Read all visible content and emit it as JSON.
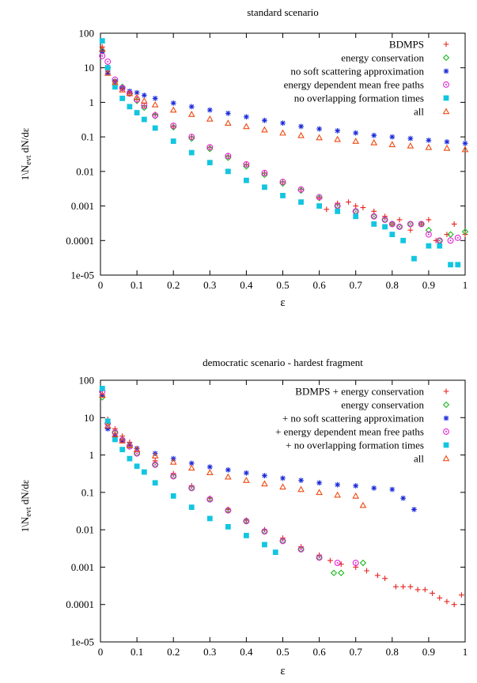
{
  "chart_data": [
    {
      "type": "scatter",
      "title": "standard scenario",
      "xlabel": "ε",
      "ylabel": "1\\N",
      "ylabel_sub": "evt",
      "ylabel_tail": " dN/dε",
      "xlim": [
        0,
        1
      ],
      "ylim": [
        1e-05,
        100
      ],
      "yscale": "log",
      "grid": false,
      "legend": "top-right",
      "xticks": [
        "0",
        "0.1",
        "0.2",
        "0.3",
        "0.4",
        "0.5",
        "0.6",
        "0.7",
        "0.8",
        "0.9",
        "1"
      ],
      "yticks": [
        "1e-05",
        "0.0001",
        "0.001",
        "0.01",
        "0.1",
        "1",
        "10",
        "100"
      ],
      "series": [
        {
          "name": "BDMPS",
          "color": "#e8231e",
          "marker": "plus",
          "x": [
            0.005,
            0.02,
            0.04,
            0.06,
            0.08,
            0.1,
            0.12,
            0.15,
            0.2,
            0.25,
            0.3,
            0.35,
            0.4,
            0.45,
            0.5,
            0.55,
            0.6,
            0.62,
            0.65,
            0.68,
            0.7,
            0.72,
            0.75,
            0.78,
            0.8,
            0.82,
            0.85,
            0.88,
            0.9,
            0.92,
            0.95,
            0.97,
            1.0
          ],
          "y": [
            40,
            8,
            4,
            2.5,
            1.8,
            1.2,
            0.8,
            0.45,
            0.2,
            0.1,
            0.05,
            0.028,
            0.016,
            0.009,
            0.005,
            0.003,
            0.0017,
            0.0008,
            0.0012,
            0.0013,
            0.001,
            0.0009,
            0.0007,
            0.0005,
            0.0003,
            0.0004,
            0.0002,
            0.0003,
            0.0004,
            0.0001,
            0.00015,
            0.0003,
            0.00015
          ]
        },
        {
          "name": "energy conservation",
          "color": "#19b91c",
          "marker": "diamond",
          "x": [
            0.005,
            0.02,
            0.04,
            0.06,
            0.08,
            0.1,
            0.12,
            0.15,
            0.2,
            0.25,
            0.3,
            0.35,
            0.4,
            0.45,
            0.5,
            0.55,
            0.6,
            0.65,
            0.7,
            0.75,
            0.78,
            0.8,
            0.82,
            0.85,
            0.88,
            0.9,
            0.93,
            0.96,
            1.0
          ],
          "y": [
            30,
            10,
            4,
            2.8,
            1.8,
            1.1,
            0.7,
            0.4,
            0.19,
            0.09,
            0.045,
            0.025,
            0.014,
            0.008,
            0.0045,
            0.0028,
            0.0017,
            0.001,
            0.0007,
            0.0005,
            0.0004,
            0.0003,
            0.00025,
            0.0003,
            0.0003,
            0.0002,
            0.0001,
            0.00015,
            0.00018
          ]
        },
        {
          "name": "no soft scattering approximation",
          "color": "#1b2bd9",
          "marker": "star",
          "x": [
            0.005,
            0.02,
            0.04,
            0.06,
            0.08,
            0.1,
            0.12,
            0.15,
            0.2,
            0.25,
            0.3,
            0.35,
            0.4,
            0.45,
            0.5,
            0.55,
            0.6,
            0.65,
            0.7,
            0.75,
            0.8,
            0.85,
            0.9,
            0.95,
            1.0
          ],
          "y": [
            30,
            7,
            4,
            2.6,
            2.1,
            1.9,
            1.6,
            1.3,
            0.95,
            0.75,
            0.6,
            0.48,
            0.38,
            0.3,
            0.25,
            0.2,
            0.17,
            0.15,
            0.13,
            0.11,
            0.1,
            0.09,
            0.08,
            0.072,
            0.065
          ]
        },
        {
          "name": "energy dependent mean free paths",
          "color": "#e323d6",
          "marker": "circle",
          "x": [
            0.005,
            0.02,
            0.04,
            0.06,
            0.08,
            0.1,
            0.12,
            0.15,
            0.2,
            0.25,
            0.3,
            0.35,
            0.4,
            0.45,
            0.5,
            0.55,
            0.6,
            0.65,
            0.7,
            0.75,
            0.78,
            0.8,
            0.82,
            0.85,
            0.88,
            0.9,
            0.93,
            0.96,
            0.98
          ],
          "y": [
            22,
            15,
            4.5,
            2.6,
            1.8,
            1.2,
            0.8,
            0.42,
            0.21,
            0.1,
            0.05,
            0.028,
            0.016,
            0.009,
            0.005,
            0.003,
            0.0018,
            0.001,
            0.0007,
            0.0005,
            0.0004,
            0.0003,
            0.00025,
            0.0003,
            0.0003,
            0.00015,
            0.0001,
            0.0001,
            0.00012
          ]
        },
        {
          "name": "no overlapping formation times",
          "color": "#12c6e0",
          "marker": "square",
          "x": [
            0.005,
            0.02,
            0.04,
            0.06,
            0.08,
            0.1,
            0.12,
            0.15,
            0.2,
            0.25,
            0.3,
            0.35,
            0.4,
            0.45,
            0.5,
            0.55,
            0.6,
            0.65,
            0.7,
            0.75,
            0.78,
            0.8,
            0.83,
            0.86,
            0.9,
            0.93,
            0.96,
            0.98
          ],
          "y": [
            60,
            10,
            2.8,
            1.3,
            0.75,
            0.5,
            0.32,
            0.18,
            0.075,
            0.035,
            0.018,
            0.01,
            0.0055,
            0.0035,
            0.002,
            0.0013,
            0.001,
            0.0007,
            0.0005,
            0.0003,
            0.00025,
            0.00015,
            0.0001,
            3e-05,
            7e-05,
            7e-05,
            2e-05,
            2e-05
          ]
        },
        {
          "name": "all",
          "color": "#f04a12",
          "marker": "triangle",
          "x": [
            0.005,
            0.02,
            0.04,
            0.06,
            0.08,
            0.1,
            0.12,
            0.15,
            0.2,
            0.25,
            0.3,
            0.35,
            0.4,
            0.45,
            0.5,
            0.55,
            0.6,
            0.65,
            0.7,
            0.75,
            0.8,
            0.85,
            0.9,
            0.95,
            1.0
          ],
          "y": [
            35,
            7,
            3.8,
            2.3,
            1.8,
            1.4,
            1.1,
            0.85,
            0.6,
            0.45,
            0.33,
            0.25,
            0.2,
            0.16,
            0.13,
            0.11,
            0.095,
            0.085,
            0.075,
            0.068,
            0.06,
            0.055,
            0.05,
            0.047,
            0.043
          ]
        }
      ]
    },
    {
      "type": "scatter",
      "title": "democratic scenario - hardest fragment",
      "xlabel": "ε",
      "ylabel": "1\\N",
      "ylabel_sub": "evt",
      "ylabel_tail": " dN/dε",
      "xlim": [
        0,
        1
      ],
      "ylim": [
        1e-05,
        100
      ],
      "yscale": "log",
      "grid": false,
      "legend": "top-right",
      "xticks": [
        "0",
        "0.1",
        "0.2",
        "0.3",
        "0.4",
        "0.5",
        "0.6",
        "0.7",
        "0.8",
        "0.9",
        "1"
      ],
      "yticks": [
        "1e-05",
        "0.0001",
        "0.001",
        "0.01",
        "0.1",
        "1",
        "10",
        "100"
      ],
      "series": [
        {
          "name": "BDMPS + energy conservation",
          "color": "#e8231e",
          "marker": "plus",
          "x": [
            0.005,
            0.02,
            0.04,
            0.06,
            0.08,
            0.1,
            0.15,
            0.2,
            0.25,
            0.3,
            0.35,
            0.4,
            0.45,
            0.5,
            0.55,
            0.6,
            0.63,
            0.66,
            0.7,
            0.73,
            0.76,
            0.78,
            0.81,
            0.83,
            0.85,
            0.87,
            0.89,
            0.91,
            0.93,
            0.95,
            0.97,
            0.99
          ],
          "y": [
            40,
            9,
            5,
            3.2,
            2.2,
            1.5,
            0.7,
            0.32,
            0.15,
            0.07,
            0.035,
            0.018,
            0.01,
            0.006,
            0.0035,
            0.0021,
            0.0015,
            0.0012,
            0.001,
            0.0008,
            0.0006,
            0.0005,
            0.0003,
            0.0003,
            0.0003,
            0.00025,
            0.00025,
            0.0002,
            0.00015,
            0.00012,
            0.0001,
            0.00018
          ]
        },
        {
          "name": "energy conservation",
          "color": "#19b91c",
          "marker": "diamond",
          "x": [
            0.005,
            0.02,
            0.04,
            0.06,
            0.08,
            0.1,
            0.15,
            0.2,
            0.25,
            0.3,
            0.35,
            0.4,
            0.45,
            0.5,
            0.55,
            0.6,
            0.64,
            0.66,
            0.72
          ],
          "y": [
            35,
            7,
            4,
            2.6,
            1.8,
            1.1,
            0.55,
            0.27,
            0.13,
            0.065,
            0.033,
            0.017,
            0.009,
            0.005,
            0.003,
            0.0018,
            0.0007,
            0.0007,
            0.0013
          ]
        },
        {
          "name": "+ no soft scattering approximation",
          "color": "#1b2bd9",
          "marker": "star",
          "x": [
            0.005,
            0.02,
            0.04,
            0.06,
            0.08,
            0.1,
            0.15,
            0.2,
            0.25,
            0.3,
            0.35,
            0.4,
            0.45,
            0.5,
            0.55,
            0.6,
            0.65,
            0.7,
            0.75,
            0.8,
            0.83,
            0.86
          ],
          "y": [
            40,
            5,
            3.2,
            2.4,
            1.9,
            1.5,
            1.1,
            0.8,
            0.6,
            0.48,
            0.4,
            0.33,
            0.28,
            0.24,
            0.21,
            0.18,
            0.16,
            0.15,
            0.13,
            0.12,
            0.07,
            0.035
          ]
        },
        {
          "name": "+ energy dependent mean free paths",
          "color": "#e323d6",
          "marker": "circle",
          "x": [
            0.005,
            0.02,
            0.04,
            0.06,
            0.08,
            0.1,
            0.15,
            0.2,
            0.25,
            0.3,
            0.35,
            0.4,
            0.45,
            0.5,
            0.55,
            0.6,
            0.65,
            0.7
          ],
          "y": [
            50,
            7,
            4,
            2.5,
            1.7,
            1.1,
            0.55,
            0.27,
            0.13,
            0.065,
            0.033,
            0.017,
            0.009,
            0.005,
            0.003,
            0.0018,
            0.0013,
            0.0013
          ]
        },
        {
          "name": "+ no overlapping formation times",
          "color": "#12c6e0",
          "marker": "square",
          "x": [
            0.005,
            0.02,
            0.04,
            0.06,
            0.08,
            0.1,
            0.12,
            0.15,
            0.2,
            0.25,
            0.3,
            0.35,
            0.4,
            0.45,
            0.48
          ],
          "y": [
            60,
            8,
            2.6,
            1.4,
            0.8,
            0.5,
            0.35,
            0.18,
            0.08,
            0.04,
            0.02,
            0.012,
            0.007,
            0.004,
            0.0025
          ]
        },
        {
          "name": "all",
          "color": "#f04a12",
          "marker": "triangle",
          "x": [
            0.005,
            0.02,
            0.04,
            0.06,
            0.08,
            0.1,
            0.15,
            0.2,
            0.25,
            0.3,
            0.35,
            0.4,
            0.45,
            0.5,
            0.55,
            0.6,
            0.65,
            0.7,
            0.72
          ],
          "y": [
            40,
            6,
            3.5,
            2.4,
            1.8,
            1.4,
            0.95,
            0.65,
            0.45,
            0.34,
            0.26,
            0.21,
            0.17,
            0.14,
            0.12,
            0.1,
            0.085,
            0.08,
            0.045
          ]
        }
      ]
    }
  ]
}
